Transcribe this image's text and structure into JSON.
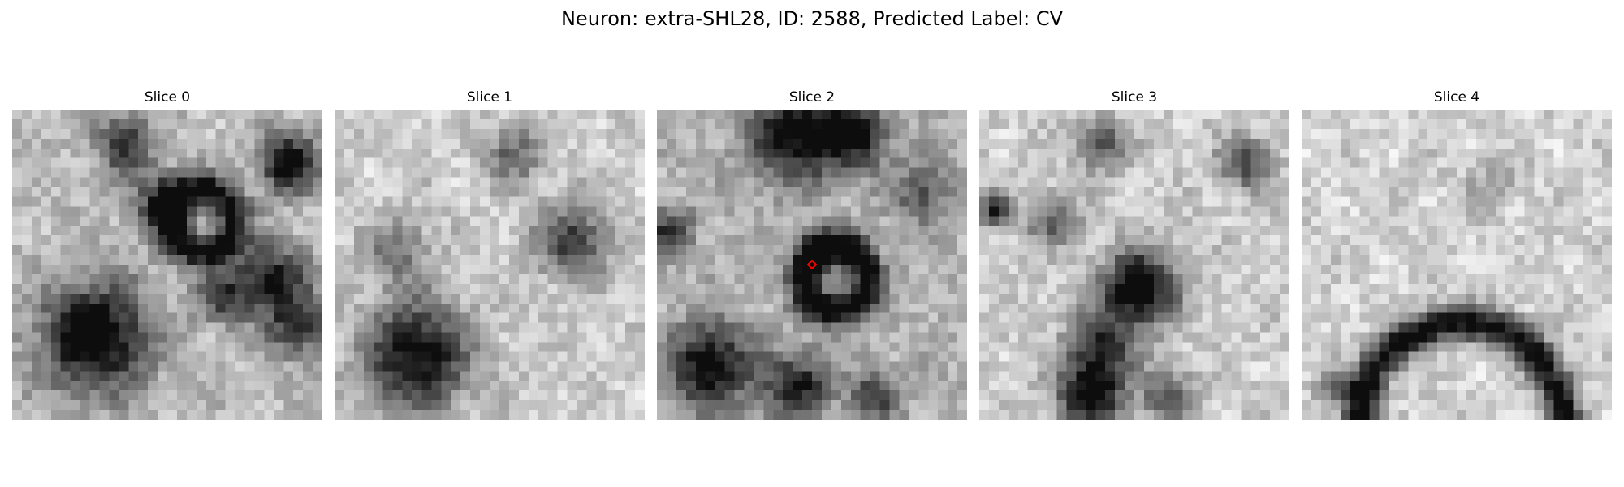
{
  "figure": {
    "title": "Neuron: extra-SHL28, ID: 2588, Predicted Label: CV"
  },
  "slices": [
    {
      "label": "Slice 0"
    },
    {
      "label": "Slice 1"
    },
    {
      "label": "Slice 2"
    },
    {
      "label": "Slice 3"
    },
    {
      "label": "Slice 4"
    }
  ],
  "colormap": "gray",
  "marker_color": "#ff0000"
}
